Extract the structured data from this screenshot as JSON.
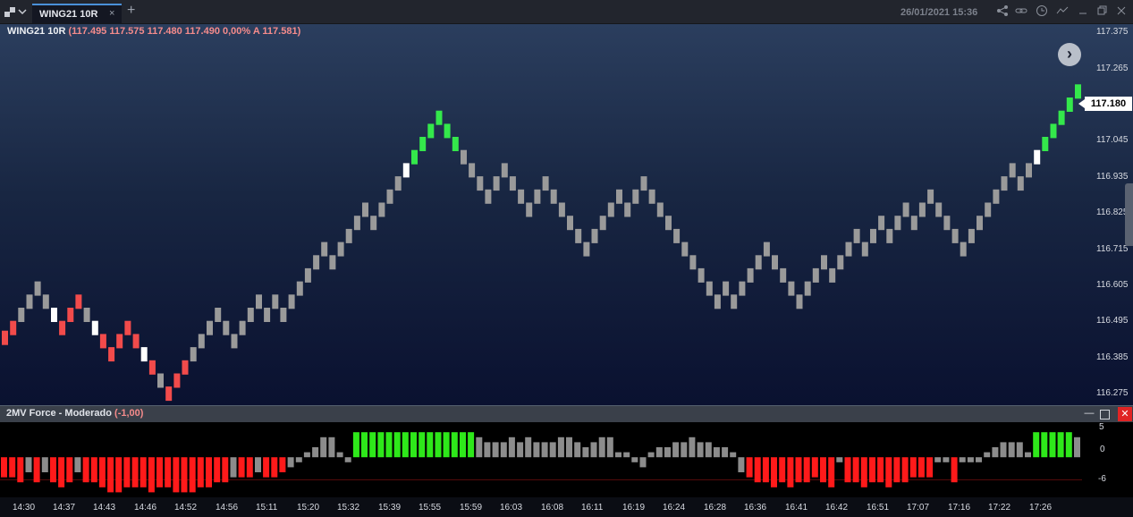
{
  "tab": {
    "label": "WING21 10R",
    "close": "×",
    "new_tab": "+"
  },
  "datetime": "26/01/2021 15:36",
  "toolbar_icons": [
    "share-icon",
    "link-icon",
    "clock-icon",
    "trend-icon",
    "minimize-icon",
    "restore-icon",
    "close-icon"
  ],
  "legend": {
    "symbol": "WING21 10R",
    "values": "(117.495  117.575  117.480  117.490  0,00%  A 117.581)"
  },
  "current_price": "117.180",
  "price_axis": [
    "117.375",
    "117.265",
    "117.155",
    "117.045",
    "116.935",
    "116.825",
    "116.715",
    "116.605",
    "116.495",
    "116.385",
    "116.275"
  ],
  "nav_next": "›",
  "indicator": {
    "title": "2MV Force - Moderado",
    "value": "(-1,00)",
    "axis": [
      "5",
      "0",
      "-6"
    ],
    "minimize": "—",
    "maximize": "☐",
    "close": "✕"
  },
  "time_axis": [
    "14:30",
    "14:37",
    "14:43",
    "14:46",
    "14:52",
    "14:56",
    "15:11",
    "15:20",
    "15:32",
    "15:39",
    "15:55",
    "15:59",
    "16:03",
    "16:08",
    "16:11",
    "16:19",
    "16:24",
    "16:28",
    "16:36",
    "16:41",
    "16:42",
    "16:51",
    "17:07",
    "17:16",
    "17:22",
    "17:26"
  ],
  "colors": {
    "red": "#f24b4b",
    "gray": "#9a9a9a",
    "white": "#ffffff",
    "green": "#34e84b",
    "ind_red": "#ff1a1a",
    "ind_green": "#2ee81a",
    "ind_gray": "#8c8c8c"
  },
  "chart_data": {
    "type": "renko",
    "box_size": 0.01,
    "current_price": 117.18,
    "y_range": [
      116.24,
      117.4
    ],
    "bricks": [
      {
        "p": 116.445,
        "c": "red"
      },
      {
        "p": 116.475,
        "c": "red"
      },
      {
        "p": 116.515,
        "c": "gray"
      },
      {
        "p": 116.555,
        "c": "gray"
      },
      {
        "p": 116.595,
        "c": "gray"
      },
      {
        "p": 116.555,
        "c": "gray"
      },
      {
        "p": 116.515,
        "c": "white"
      },
      {
        "p": 116.475,
        "c": "red"
      },
      {
        "p": 116.515,
        "c": "red"
      },
      {
        "p": 116.555,
        "c": "red"
      },
      {
        "p": 116.515,
        "c": "gray"
      },
      {
        "p": 116.475,
        "c": "white"
      },
      {
        "p": 116.435,
        "c": "red"
      },
      {
        "p": 116.395,
        "c": "red"
      },
      {
        "p": 116.435,
        "c": "red"
      },
      {
        "p": 116.475,
        "c": "red"
      },
      {
        "p": 116.435,
        "c": "red"
      },
      {
        "p": 116.395,
        "c": "white"
      },
      {
        "p": 116.355,
        "c": "red"
      },
      {
        "p": 116.315,
        "c": "gray"
      },
      {
        "p": 116.275,
        "c": "red"
      },
      {
        "p": 116.315,
        "c": "red"
      },
      {
        "p": 116.355,
        "c": "red"
      },
      {
        "p": 116.395,
        "c": "gray"
      },
      {
        "p": 116.435,
        "c": "gray"
      },
      {
        "p": 116.475,
        "c": "gray"
      },
      {
        "p": 116.515,
        "c": "gray"
      },
      {
        "p": 116.475,
        "c": "gray"
      },
      {
        "p": 116.435,
        "c": "gray"
      },
      {
        "p": 116.475,
        "c": "gray"
      },
      {
        "p": 116.515,
        "c": "gray"
      },
      {
        "p": 116.555,
        "c": "gray"
      },
      {
        "p": 116.515,
        "c": "gray"
      },
      {
        "p": 116.555,
        "c": "gray"
      },
      {
        "p": 116.515,
        "c": "gray"
      },
      {
        "p": 116.555,
        "c": "gray"
      },
      {
        "p": 116.595,
        "c": "gray"
      },
      {
        "p": 116.635,
        "c": "gray"
      },
      {
        "p": 116.675,
        "c": "gray"
      },
      {
        "p": 116.715,
        "c": "gray"
      },
      {
        "p": 116.675,
        "c": "gray"
      },
      {
        "p": 116.715,
        "c": "gray"
      },
      {
        "p": 116.755,
        "c": "gray"
      },
      {
        "p": 116.795,
        "c": "gray"
      },
      {
        "p": 116.835,
        "c": "gray"
      },
      {
        "p": 116.795,
        "c": "gray"
      },
      {
        "p": 116.835,
        "c": "gray"
      },
      {
        "p": 116.875,
        "c": "gray"
      },
      {
        "p": 116.915,
        "c": "gray"
      },
      {
        "p": 116.955,
        "c": "white"
      },
      {
        "p": 116.995,
        "c": "green"
      },
      {
        "p": 117.035,
        "c": "green"
      },
      {
        "p": 117.075,
        "c": "green"
      },
      {
        "p": 117.115,
        "c": "green"
      },
      {
        "p": 117.075,
        "c": "green"
      },
      {
        "p": 117.035,
        "c": "green"
      },
      {
        "p": 116.995,
        "c": "gray"
      },
      {
        "p": 116.955,
        "c": "gray"
      },
      {
        "p": 116.915,
        "c": "gray"
      },
      {
        "p": 116.875,
        "c": "gray"
      },
      {
        "p": 116.915,
        "c": "gray"
      },
      {
        "p": 116.955,
        "c": "gray"
      },
      {
        "p": 116.915,
        "c": "gray"
      },
      {
        "p": 116.875,
        "c": "gray"
      },
      {
        "p": 116.835,
        "c": "gray"
      },
      {
        "p": 116.875,
        "c": "gray"
      },
      {
        "p": 116.915,
        "c": "gray"
      },
      {
        "p": 116.875,
        "c": "gray"
      },
      {
        "p": 116.835,
        "c": "gray"
      },
      {
        "p": 116.795,
        "c": "gray"
      },
      {
        "p": 116.755,
        "c": "gray"
      },
      {
        "p": 116.715,
        "c": "gray"
      },
      {
        "p": 116.755,
        "c": "gray"
      },
      {
        "p": 116.795,
        "c": "gray"
      },
      {
        "p": 116.835,
        "c": "gray"
      },
      {
        "p": 116.875,
        "c": "gray"
      },
      {
        "p": 116.835,
        "c": "gray"
      },
      {
        "p": 116.875,
        "c": "gray"
      },
      {
        "p": 116.915,
        "c": "gray"
      },
      {
        "p": 116.875,
        "c": "gray"
      },
      {
        "p": 116.835,
        "c": "gray"
      },
      {
        "p": 116.795,
        "c": "gray"
      },
      {
        "p": 116.755,
        "c": "gray"
      },
      {
        "p": 116.715,
        "c": "gray"
      },
      {
        "p": 116.675,
        "c": "gray"
      },
      {
        "p": 116.635,
        "c": "gray"
      },
      {
        "p": 116.595,
        "c": "gray"
      },
      {
        "p": 116.555,
        "c": "gray"
      },
      {
        "p": 116.595,
        "c": "gray"
      },
      {
        "p": 116.555,
        "c": "gray"
      },
      {
        "p": 116.595,
        "c": "gray"
      },
      {
        "p": 116.635,
        "c": "gray"
      },
      {
        "p": 116.675,
        "c": "gray"
      },
      {
        "p": 116.715,
        "c": "gray"
      },
      {
        "p": 116.675,
        "c": "gray"
      },
      {
        "p": 116.635,
        "c": "gray"
      },
      {
        "p": 116.595,
        "c": "gray"
      },
      {
        "p": 116.555,
        "c": "gray"
      },
      {
        "p": 116.595,
        "c": "gray"
      },
      {
        "p": 116.635,
        "c": "gray"
      },
      {
        "p": 116.675,
        "c": "gray"
      },
      {
        "p": 116.635,
        "c": "gray"
      },
      {
        "p": 116.675,
        "c": "gray"
      },
      {
        "p": 116.715,
        "c": "gray"
      },
      {
        "p": 116.755,
        "c": "gray"
      },
      {
        "p": 116.715,
        "c": "gray"
      },
      {
        "p": 116.755,
        "c": "gray"
      },
      {
        "p": 116.795,
        "c": "gray"
      },
      {
        "p": 116.755,
        "c": "gray"
      },
      {
        "p": 116.795,
        "c": "gray"
      },
      {
        "p": 116.835,
        "c": "gray"
      },
      {
        "p": 116.795,
        "c": "gray"
      },
      {
        "p": 116.835,
        "c": "gray"
      },
      {
        "p": 116.875,
        "c": "gray"
      },
      {
        "p": 116.835,
        "c": "gray"
      },
      {
        "p": 116.795,
        "c": "gray"
      },
      {
        "p": 116.755,
        "c": "gray"
      },
      {
        "p": 116.715,
        "c": "gray"
      },
      {
        "p": 116.755,
        "c": "gray"
      },
      {
        "p": 116.795,
        "c": "gray"
      },
      {
        "p": 116.835,
        "c": "gray"
      },
      {
        "p": 116.875,
        "c": "gray"
      },
      {
        "p": 116.915,
        "c": "gray"
      },
      {
        "p": 116.955,
        "c": "gray"
      },
      {
        "p": 116.915,
        "c": "gray"
      },
      {
        "p": 116.955,
        "c": "gray"
      },
      {
        "p": 116.995,
        "c": "white"
      },
      {
        "p": 117.035,
        "c": "green"
      },
      {
        "p": 117.075,
        "c": "green"
      },
      {
        "p": 117.115,
        "c": "green"
      },
      {
        "p": 117.155,
        "c": "green"
      },
      {
        "p": 117.195,
        "c": "green"
      },
      {
        "p": 117.235,
        "c": "green"
      },
      {
        "p": 117.275,
        "c": "green"
      },
      {
        "p": 117.315,
        "c": "green"
      },
      {
        "p": 117.355,
        "c": "green"
      },
      {
        "p": 117.315,
        "c": "green"
      },
      {
        "p": 117.275,
        "c": "green"
      },
      {
        "p": 117.235,
        "c": "gray"
      }
    ],
    "indicator": {
      "name": "2MV Force - Moderado",
      "value": -1.0,
      "y_range": [
        -8,
        7
      ],
      "ticks": [
        5,
        0,
        -6
      ],
      "bars": [
        {
          "v": -4,
          "c": "red"
        },
        {
          "v": -4,
          "c": "red"
        },
        {
          "v": -5,
          "c": "red"
        },
        {
          "v": -3,
          "c": "gray"
        },
        {
          "v": -5,
          "c": "red"
        },
        {
          "v": -3,
          "c": "gray"
        },
        {
          "v": -5,
          "c": "red"
        },
        {
          "v": -6,
          "c": "red"
        },
        {
          "v": -5,
          "c": "red"
        },
        {
          "v": -3,
          "c": "gray"
        },
        {
          "v": -5,
          "c": "red"
        },
        {
          "v": -5,
          "c": "red"
        },
        {
          "v": -6,
          "c": "red"
        },
        {
          "v": -7,
          "c": "red"
        },
        {
          "v": -7,
          "c": "red"
        },
        {
          "v": -6,
          "c": "red"
        },
        {
          "v": -6,
          "c": "red"
        },
        {
          "v": -6,
          "c": "red"
        },
        {
          "v": -7,
          "c": "red"
        },
        {
          "v": -6,
          "c": "red"
        },
        {
          "v": -6,
          "c": "red"
        },
        {
          "v": -7,
          "c": "red"
        },
        {
          "v": -7,
          "c": "red"
        },
        {
          "v": -7,
          "c": "red"
        },
        {
          "v": -6,
          "c": "red"
        },
        {
          "v": -6,
          "c": "red"
        },
        {
          "v": -5,
          "c": "red"
        },
        {
          "v": -5,
          "c": "red"
        },
        {
          "v": -4,
          "c": "gray"
        },
        {
          "v": -4,
          "c": "red"
        },
        {
          "v": -4,
          "c": "red"
        },
        {
          "v": -3,
          "c": "gray"
        },
        {
          "v": -4,
          "c": "red"
        },
        {
          "v": -4,
          "c": "red"
        },
        {
          "v": -3,
          "c": "red"
        },
        {
          "v": -2,
          "c": "gray"
        },
        {
          "v": -1,
          "c": "gray"
        },
        {
          "v": 1,
          "c": "gray"
        },
        {
          "v": 2,
          "c": "gray"
        },
        {
          "v": 4,
          "c": "gray"
        },
        {
          "v": 4,
          "c": "gray"
        },
        {
          "v": 1,
          "c": "gray"
        },
        {
          "v": -1,
          "c": "gray"
        },
        {
          "v": 5,
          "c": "green"
        },
        {
          "v": 5,
          "c": "green"
        },
        {
          "v": 5,
          "c": "green"
        },
        {
          "v": 5,
          "c": "green"
        },
        {
          "v": 5,
          "c": "green"
        },
        {
          "v": 5,
          "c": "green"
        },
        {
          "v": 5,
          "c": "green"
        },
        {
          "v": 5,
          "c": "green"
        },
        {
          "v": 5,
          "c": "green"
        },
        {
          "v": 5,
          "c": "green"
        },
        {
          "v": 5,
          "c": "green"
        },
        {
          "v": 5,
          "c": "green"
        },
        {
          "v": 5,
          "c": "green"
        },
        {
          "v": 5,
          "c": "green"
        },
        {
          "v": 5,
          "c": "green"
        },
        {
          "v": 4,
          "c": "gray"
        },
        {
          "v": 3,
          "c": "gray"
        },
        {
          "v": 3,
          "c": "gray"
        },
        {
          "v": 3,
          "c": "gray"
        },
        {
          "v": 4,
          "c": "gray"
        },
        {
          "v": 3,
          "c": "gray"
        },
        {
          "v": 4,
          "c": "gray"
        },
        {
          "v": 3,
          "c": "gray"
        },
        {
          "v": 3,
          "c": "gray"
        },
        {
          "v": 3,
          "c": "gray"
        },
        {
          "v": 4,
          "c": "gray"
        },
        {
          "v": 4,
          "c": "gray"
        },
        {
          "v": 3,
          "c": "gray"
        },
        {
          "v": 2,
          "c": "gray"
        },
        {
          "v": 3,
          "c": "gray"
        },
        {
          "v": 4,
          "c": "gray"
        },
        {
          "v": 4,
          "c": "gray"
        },
        {
          "v": 1,
          "c": "gray"
        },
        {
          "v": 1,
          "c": "gray"
        },
        {
          "v": -1,
          "c": "gray"
        },
        {
          "v": -2,
          "c": "gray"
        },
        {
          "v": 1,
          "c": "gray"
        },
        {
          "v": 2,
          "c": "gray"
        },
        {
          "v": 2,
          "c": "gray"
        },
        {
          "v": 3,
          "c": "gray"
        },
        {
          "v": 3,
          "c": "gray"
        },
        {
          "v": 4,
          "c": "gray"
        },
        {
          "v": 3,
          "c": "gray"
        },
        {
          "v": 3,
          "c": "gray"
        },
        {
          "v": 2,
          "c": "gray"
        },
        {
          "v": 2,
          "c": "gray"
        },
        {
          "v": 1,
          "c": "gray"
        },
        {
          "v": -3,
          "c": "gray"
        },
        {
          "v": -4,
          "c": "red"
        },
        {
          "v": -5,
          "c": "red"
        },
        {
          "v": -5,
          "c": "red"
        },
        {
          "v": -6,
          "c": "red"
        },
        {
          "v": -5,
          "c": "red"
        },
        {
          "v": -6,
          "c": "red"
        },
        {
          "v": -5,
          "c": "red"
        },
        {
          "v": -5,
          "c": "red"
        },
        {
          "v": -4,
          "c": "red"
        },
        {
          "v": -5,
          "c": "red"
        },
        {
          "v": -6,
          "c": "red"
        },
        {
          "v": -1,
          "c": "gray"
        },
        {
          "v": -5,
          "c": "red"
        },
        {
          "v": -5,
          "c": "red"
        },
        {
          "v": -6,
          "c": "red"
        },
        {
          "v": -5,
          "c": "red"
        },
        {
          "v": -5,
          "c": "red"
        },
        {
          "v": -6,
          "c": "red"
        },
        {
          "v": -5,
          "c": "red"
        },
        {
          "v": -5,
          "c": "red"
        },
        {
          "v": -4,
          "c": "red"
        },
        {
          "v": -4,
          "c": "red"
        },
        {
          "v": -4,
          "c": "red"
        },
        {
          "v": -1,
          "c": "gray"
        },
        {
          "v": -1,
          "c": "gray"
        },
        {
          "v": -5,
          "c": "red"
        },
        {
          "v": -1,
          "c": "gray"
        },
        {
          "v": -1,
          "c": "gray"
        },
        {
          "v": -1,
          "c": "gray"
        },
        {
          "v": 1,
          "c": "gray"
        },
        {
          "v": 2,
          "c": "gray"
        },
        {
          "v": 3,
          "c": "gray"
        },
        {
          "v": 3,
          "c": "gray"
        },
        {
          "v": 3,
          "c": "gray"
        },
        {
          "v": 1,
          "c": "gray"
        },
        {
          "v": 5,
          "c": "green"
        },
        {
          "v": 5,
          "c": "green"
        },
        {
          "v": 5,
          "c": "green"
        },
        {
          "v": 5,
          "c": "green"
        },
        {
          "v": 5,
          "c": "green"
        },
        {
          "v": 4,
          "c": "gray"
        },
        {
          "v": 5,
          "c": "green"
        },
        {
          "v": 5,
          "c": "green"
        },
        {
          "v": 5,
          "c": "green"
        },
        {
          "v": 5,
          "c": "green"
        },
        {
          "v": 5,
          "c": "green"
        },
        {
          "v": 5,
          "c": "green"
        },
        {
          "v": 5,
          "c": "green"
        },
        {
          "v": 5,
          "c": "green"
        },
        {
          "v": 5,
          "c": "green"
        },
        {
          "v": 5,
          "c": "green"
        },
        {
          "v": 5,
          "c": "green"
        },
        {
          "v": 5,
          "c": "green"
        },
        {
          "v": 4,
          "c": "gray"
        }
      ]
    }
  }
}
